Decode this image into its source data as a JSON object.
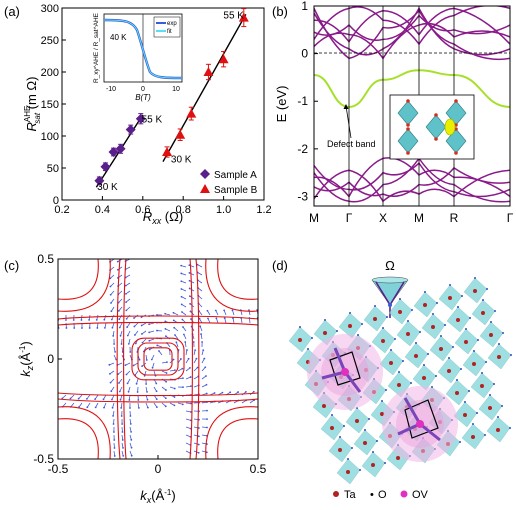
{
  "colors": {
    "purple": "#5b1f8c",
    "red": "#e01010",
    "black": "#111111",
    "band": "#8a1a8a",
    "defect": "#a5e02a",
    "cyan": "#7fd3d8",
    "pink": "#f0b6e8",
    "blue": "#3b5bd9",
    "ta": "#b22222",
    "ov": "#e030c0"
  },
  "panels": {
    "a": "(a)",
    "b": "(b)",
    "c": "(c)",
    "d": "(d)"
  },
  "chart_data": [
    {
      "id": "a",
      "type": "scatter",
      "xlabel_main": "R",
      "xlabel_sub": "xx",
      "xlabel_unit": " (Ω)",
      "ylabel_main": "R",
      "ylabel_sup": "AHE",
      "ylabel_sub": "sat",
      "ylabel_unit": " (m Ω)",
      "xlim": [
        0.2,
        1.2
      ],
      "ylim": [
        0,
        300
      ],
      "xticks": [
        "0.2",
        "0.4",
        "0.6",
        "0.8",
        "1.0",
        "1.2"
      ],
      "yticks": [
        "0",
        "50",
        "100",
        "150",
        "200",
        "250",
        "300"
      ],
      "series": [
        {
          "name": "Sample A",
          "marker": "diamond",
          "color": "#5b1f8c",
          "x": [
            0.385,
            0.415,
            0.455,
            0.49,
            0.54,
            0.59
          ],
          "y": [
            30,
            52,
            75,
            80,
            110,
            127
          ],
          "err": [
            6,
            6,
            6,
            7,
            7,
            8
          ]
        },
        {
          "name": "Sample B",
          "marker": "triangle",
          "color": "#e01010",
          "x": [
            0.72,
            0.785,
            0.84,
            0.925,
            1.0,
            1.1
          ],
          "y": [
            75,
            102,
            135,
            200,
            220,
            285
          ],
          "err": [
            8,
            9,
            10,
            12,
            12,
            14
          ]
        }
      ],
      "fitA": {
        "x": [
          0.37,
          0.6
        ],
        "y": [
          20,
          133
        ]
      },
      "fitB": {
        "x": [
          0.7,
          1.11
        ],
        "y": [
          60,
          290
        ]
      },
      "annotations": [
        {
          "text": "30 K",
          "x": 0.425,
          "y": 22
        },
        {
          "text": "55 K",
          "x": 0.645,
          "y": 127
        },
        {
          "text": "30 K",
          "x": 0.79,
          "y": 65
        },
        {
          "text": "55 K",
          "x": 1.05,
          "y": 290
        }
      ],
      "inset": {
        "temp": "40 K",
        "xlabel": "B(T)",
        "ylabel": "R_xy^AHE / R_sat^AHE",
        "xticks": [
          "-10",
          "0",
          "10"
        ],
        "legend": [
          "exp",
          "fit"
        ]
      }
    },
    {
      "id": "b",
      "type": "line",
      "ylabel": "E (eV)",
      "ylim": [
        -3.2,
        1
      ],
      "yticks": [
        "1",
        "0",
        "-1",
        "-2",
        "-3"
      ],
      "kpoints": [
        "M",
        "Γ",
        "X",
        "M",
        "R",
        "Γ"
      ],
      "annotation": "Defect band"
    },
    {
      "id": "c",
      "type": "line",
      "xlabel_main": "k",
      "xlabel_sub": "x",
      "xlabel_unit": "(Å",
      "xlabel_exp": "-1",
      "ylabel_main": "k",
      "ylabel_sub": "z",
      "ylabel_unit": "(Å",
      "ylabel_exp": "-1",
      "xlim": [
        -0.5,
        0.5
      ],
      "ylim": [
        -0.5,
        0.5
      ],
      "xticks": [
        "-0.5",
        "0",
        "0.5"
      ],
      "yticks": [
        "0.5",
        "0",
        "-0.5"
      ]
    }
  ],
  "legend_d": {
    "omega": "Ω",
    "items": [
      {
        "label": "Ta"
      },
      {
        "label": "O"
      },
      {
        "label": "OV"
      }
    ],
    "dot_glyph": "•"
  }
}
